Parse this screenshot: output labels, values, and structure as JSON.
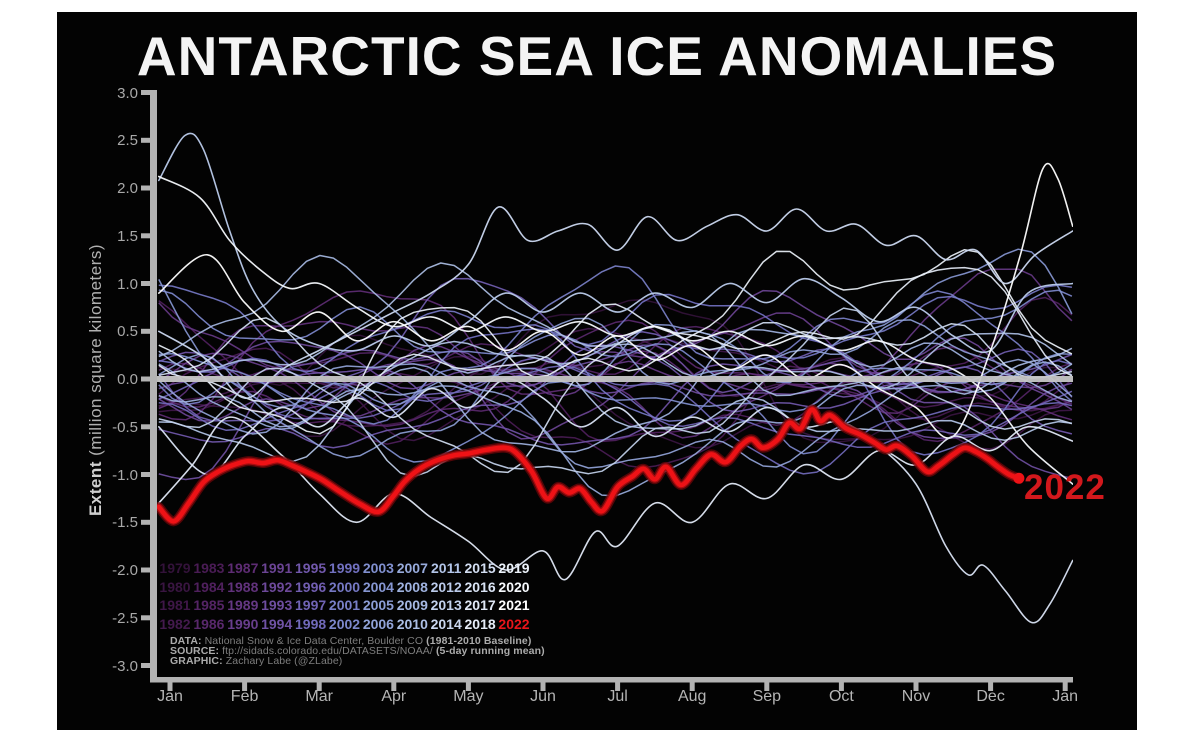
{
  "title": "ANTARCTIC SEA ICE ANOMALIES",
  "annotation_2022": "2022",
  "y_axis": {
    "label_bold": "Extent",
    "label_rest": " (million square kilometers)",
    "ticks": [
      "3.0",
      "2.5",
      "2.0",
      "1.5",
      "1.0",
      "0.5",
      "0.0",
      "-0.5",
      "-1.0",
      "-1.5",
      "-2.0",
      "-2.5",
      "-3.0"
    ]
  },
  "x_axis": {
    "ticks": [
      "Jan",
      "Feb",
      "Mar",
      "Apr",
      "May",
      "Jun",
      "Jul",
      "Aug",
      "Sep",
      "Oct",
      "Nov",
      "Dec",
      "Jan"
    ]
  },
  "legend": {
    "rows": [
      [
        "1979",
        "1983",
        "1987",
        "1991",
        "1995",
        "1999",
        "2003",
        "2007",
        "2011",
        "2015",
        "2019"
      ],
      [
        "1980",
        "1984",
        "1988",
        "1992",
        "1996",
        "2000",
        "2004",
        "2008",
        "2012",
        "2016",
        "2020"
      ],
      [
        "1981",
        "1985",
        "1989",
        "1993",
        "1997",
        "2001",
        "2005",
        "2009",
        "2013",
        "2017",
        "2021"
      ],
      [
        "1982",
        "1986",
        "1990",
        "1994",
        "1998",
        "2002",
        "2006",
        "2010",
        "2014",
        "2018",
        "2022"
      ]
    ]
  },
  "credits": [
    {
      "parts": [
        {
          "t": "DATA:",
          "b": true
        },
        {
          "t": " National Snow & Ice Data Center, Boulder CO ",
          "b": false
        },
        {
          "t": "(1981-2010 Baseline)",
          "b": true
        }
      ]
    },
    {
      "parts": [
        {
          "t": "SOURCE:",
          "b": true
        },
        {
          "t": " ftp://sidads.colorado.edu/DATASETS/NOAA/ ",
          "b": false
        },
        {
          "t": "(5-day running mean)",
          "b": true
        }
      ]
    },
    {
      "parts": [
        {
          "t": "GRAPHIC:",
          "b": true
        },
        {
          "t": " Zachary Labe (@ZLabe)",
          "b": false
        }
      ]
    }
  ],
  "colors": {
    "page_background": "#ffffff",
    "canvas_background": "#030303",
    "title": "#f4f4f4",
    "axis": "#b3b3b3",
    "tick_label": "#a9a9a9",
    "zero_line": "#c6c6c6",
    "highlight_red": "#ee1216",
    "highlight_red_glow": "#6e0709",
    "annotation_red": "#d2181c"
  },
  "chart_data": {
    "type": "line",
    "title": "ANTARCTIC SEA ICE ANOMALIES",
    "ylabel": "Extent (million square kilometers)",
    "ylim": [
      -3.0,
      3.0
    ],
    "y_tick_step": 0.5,
    "x_categories": [
      "Jan",
      "Feb",
      "Mar",
      "Apr",
      "May",
      "Jun",
      "Jul",
      "Aug",
      "Sep",
      "Oct",
      "Nov",
      "Dec",
      "Jan"
    ],
    "grid": false,
    "legend_position": "bottom-left inside plot",
    "baseline_note": "1981-2010 Baseline, 5-day running mean",
    "zero_line": 0.0,
    "years_shown": {
      "from": 1979,
      "to": 2022
    },
    "highlight_series": {
      "name": "2022",
      "color": "#ee1216",
      "end_dot": true,
      "points": [
        [
          -0.15,
          -1.34
        ],
        [
          0.05,
          -1.49
        ],
        [
          0.25,
          -1.3
        ],
        [
          0.45,
          -1.08
        ],
        [
          0.65,
          -0.97
        ],
        [
          0.85,
          -0.9
        ],
        [
          1.05,
          -0.86
        ],
        [
          1.25,
          -0.88
        ],
        [
          1.45,
          -0.85
        ],
        [
          1.65,
          -0.91
        ],
        [
          1.85,
          -0.98
        ],
        [
          2.05,
          -1.06
        ],
        [
          2.3,
          -1.19
        ],
        [
          2.55,
          -1.31
        ],
        [
          2.8,
          -1.39
        ],
        [
          3.0,
          -1.22
        ],
        [
          3.15,
          -1.07
        ],
        [
          3.35,
          -0.94
        ],
        [
          3.55,
          -0.86
        ],
        [
          3.8,
          -0.8
        ],
        [
          4.0,
          -0.78
        ],
        [
          4.25,
          -0.74
        ],
        [
          4.5,
          -0.72
        ],
        [
          4.65,
          -0.78
        ],
        [
          4.85,
          -0.97
        ],
        [
          5.05,
          -1.25
        ],
        [
          5.2,
          -1.13
        ],
        [
          5.35,
          -1.19
        ],
        [
          5.5,
          -1.15
        ],
        [
          5.65,
          -1.29
        ],
        [
          5.8,
          -1.38
        ],
        [
          6.0,
          -1.13
        ],
        [
          6.2,
          -1.02
        ],
        [
          6.35,
          -0.94
        ],
        [
          6.5,
          -1.05
        ],
        [
          6.65,
          -0.92
        ],
        [
          6.85,
          -1.11
        ],
        [
          7.05,
          -0.94
        ],
        [
          7.25,
          -0.79
        ],
        [
          7.45,
          -0.87
        ],
        [
          7.65,
          -0.7
        ],
        [
          7.8,
          -0.63
        ],
        [
          7.95,
          -0.72
        ],
        [
          8.15,
          -0.63
        ],
        [
          8.3,
          -0.46
        ],
        [
          8.45,
          -0.52
        ],
        [
          8.6,
          -0.32
        ],
        [
          8.72,
          -0.44
        ],
        [
          8.85,
          -0.38
        ],
        [
          9.05,
          -0.51
        ],
        [
          9.25,
          -0.58
        ],
        [
          9.45,
          -0.67
        ],
        [
          9.6,
          -0.74
        ],
        [
          9.75,
          -0.7
        ],
        [
          9.95,
          -0.81
        ],
        [
          10.15,
          -0.97
        ],
        [
          10.3,
          -0.91
        ],
        [
          10.5,
          -0.79
        ],
        [
          10.65,
          -0.72
        ],
        [
          10.8,
          -0.76
        ],
        [
          10.95,
          -0.83
        ],
        [
          11.1,
          -0.92
        ],
        [
          11.25,
          -1.0
        ],
        [
          11.38,
          -1.04
        ]
      ]
    },
    "background_years": {
      "from": 1979,
      "to": 2021,
      "note": "43 thin background lines, schematic reconstruction; color ramp dark purple (1979) to white (2021)",
      "color_stops": [
        [
          1979,
          "#33123a"
        ],
        [
          1983,
          "#4a1c55"
        ],
        [
          1987,
          "#5e2c74"
        ],
        [
          1991,
          "#6b4494"
        ],
        [
          1995,
          "#7158ac"
        ],
        [
          1999,
          "#7170c0"
        ],
        [
          2003,
          "#8190d0"
        ],
        [
          2007,
          "#98abdc"
        ],
        [
          2011,
          "#b3c5e8"
        ],
        [
          2015,
          "#d3def2"
        ],
        [
          2019,
          "#ecf2fa"
        ],
        [
          2021,
          "#ffffff"
        ]
      ],
      "year_2022_color": "#e8151a",
      "seed": 77
    },
    "feature_lines": [
      {
        "year": 2012,
        "points": [
          [
            -0.15,
            2.08
          ],
          [
            0.2,
            2.55
          ],
          [
            0.45,
            2.4
          ],
          [
            0.8,
            1.55
          ],
          [
            1.1,
            0.95
          ],
          [
            1.5,
            0.55
          ],
          [
            2,
            0.35
          ],
          [
            2.5,
            0.3
          ],
          [
            3,
            0.45
          ],
          [
            3.5,
            0.35
          ],
          [
            4,
            0.6
          ],
          [
            4.5,
            0.9
          ],
          [
            5,
            0.7
          ],
          [
            5.5,
            0.9
          ],
          [
            6,
            0.7
          ],
          [
            6.5,
            0.9
          ],
          [
            7,
            0.75
          ],
          [
            7.5,
            1.0
          ],
          [
            8,
            0.8
          ],
          [
            8.5,
            1.05
          ],
          [
            9,
            0.85
          ],
          [
            9.5,
            0.6
          ],
          [
            10,
            0.75
          ],
          [
            10.5,
            0.45
          ],
          [
            11,
            0.3
          ],
          [
            11.5,
            0.9
          ],
          [
            12.1,
            1.0
          ]
        ]
      },
      {
        "year": 2020,
        "points": [
          [
            -0.15,
            2.12
          ],
          [
            0.4,
            1.9
          ],
          [
            0.8,
            1.45
          ],
          [
            1.2,
            1.15
          ],
          [
            1.6,
            0.95
          ],
          [
            2,
            1.0
          ],
          [
            2.5,
            0.75
          ],
          [
            3,
            0.55
          ],
          [
            3.5,
            0.65
          ],
          [
            4,
            0.5
          ],
          [
            4.5,
            0.65
          ],
          [
            5,
            0.5
          ],
          [
            5.5,
            0.6
          ],
          [
            6,
            0.45
          ],
          [
            6.5,
            0.55
          ],
          [
            7,
            0.4
          ],
          [
            7.5,
            0.5
          ],
          [
            8,
            0.35
          ],
          [
            8.5,
            0.45
          ],
          [
            9,
            0.3
          ],
          [
            9.5,
            0.4
          ],
          [
            10,
            0.2
          ],
          [
            10.5,
            0.1
          ],
          [
            11,
            -0.2
          ],
          [
            11.5,
            -0.7
          ],
          [
            12.1,
            -1.1
          ]
        ]
      },
      {
        "year": 2014,
        "points": [
          [
            -0.15,
            0.5
          ],
          [
            0.5,
            0.2
          ],
          [
            1,
            -0.2
          ],
          [
            1.5,
            0.1
          ],
          [
            2,
            0.3
          ],
          [
            2.5,
            0.5
          ],
          [
            3,
            0.7
          ],
          [
            3.5,
            0.9
          ],
          [
            4,
            1.2
          ],
          [
            4.4,
            1.8
          ],
          [
            4.8,
            1.45
          ],
          [
            5.2,
            1.55
          ],
          [
            5.6,
            1.62
          ],
          [
            6,
            1.35
          ],
          [
            6.4,
            1.7
          ],
          [
            6.8,
            1.45
          ],
          [
            7.2,
            1.6
          ],
          [
            7.6,
            1.72
          ],
          [
            8,
            1.55
          ],
          [
            8.4,
            1.78
          ],
          [
            8.8,
            1.55
          ],
          [
            9.2,
            1.62
          ],
          [
            9.6,
            1.4
          ],
          [
            10,
            1.5
          ],
          [
            10.4,
            1.25
          ],
          [
            10.8,
            1.35
          ],
          [
            11.2,
            1.0
          ],
          [
            11.6,
            1.3
          ],
          [
            12.1,
            1.55
          ]
        ]
      },
      {
        "year": 2016,
        "points": [
          [
            -0.15,
            -0.5
          ],
          [
            0.5,
            -1.0
          ],
          [
            1,
            -0.6
          ],
          [
            1.5,
            -0.3
          ],
          [
            2,
            -0.5
          ],
          [
            2.5,
            -0.2
          ],
          [
            3,
            -0.4
          ],
          [
            3.5,
            -0.1
          ],
          [
            4,
            -0.3
          ],
          [
            4.5,
            0.0
          ],
          [
            5,
            -0.2
          ],
          [
            5.5,
            -0.5
          ],
          [
            6,
            -0.3
          ],
          [
            6.5,
            -0.6
          ],
          [
            7,
            -0.4
          ],
          [
            7.5,
            -0.55
          ],
          [
            8,
            -0.3
          ],
          [
            8.5,
            -0.5
          ],
          [
            9,
            -0.45
          ],
          [
            9.5,
            -0.7
          ],
          [
            10,
            -1.1
          ],
          [
            10.4,
            -1.75
          ],
          [
            10.7,
            -2.05
          ],
          [
            10.9,
            -1.95
          ],
          [
            11.2,
            -2.22
          ],
          [
            11.55,
            -2.55
          ],
          [
            11.8,
            -2.35
          ],
          [
            12.1,
            -1.9
          ]
        ]
      },
      {
        "year": 2021,
        "points": [
          [
            -0.15,
            0.9
          ],
          [
            0.5,
            1.3
          ],
          [
            1,
            0.8
          ],
          [
            1.5,
            0.5
          ],
          [
            2,
            0.7
          ],
          [
            2.5,
            0.4
          ],
          [
            3,
            0.6
          ],
          [
            3.5,
            0.4
          ],
          [
            4,
            0.55
          ],
          [
            4.5,
            0.3
          ],
          [
            5,
            0.5
          ],
          [
            5.5,
            0.25
          ],
          [
            6,
            0.45
          ],
          [
            6.5,
            0.2
          ],
          [
            7,
            0.35
          ],
          [
            7.5,
            0.1
          ],
          [
            8,
            0.25
          ],
          [
            8.5,
            0.0
          ],
          [
            9,
            0.15
          ],
          [
            9.5,
            -0.1
          ],
          [
            10,
            -0.3
          ],
          [
            10.5,
            -0.6
          ],
          [
            11,
            0.3
          ],
          [
            11.4,
            1.3
          ],
          [
            11.7,
            2.2
          ],
          [
            11.9,
            2.1
          ],
          [
            12.1,
            1.6
          ]
        ]
      },
      {
        "year": 2017,
        "points": [
          [
            -0.15,
            -1.3
          ],
          [
            0.3,
            -0.9
          ],
          [
            0.8,
            -0.4
          ],
          [
            1.5,
            -0.8
          ],
          [
            2,
            -1.2
          ],
          [
            2.5,
            -1.5
          ],
          [
            3,
            -1.2
          ],
          [
            3.5,
            -1.45
          ],
          [
            4,
            -1.7
          ],
          [
            4.5,
            -2.0
          ],
          [
            5,
            -1.8
          ],
          [
            5.3,
            -2.1
          ],
          [
            5.7,
            -1.6
          ],
          [
            6,
            -1.75
          ],
          [
            6.5,
            -1.3
          ],
          [
            7,
            -1.5
          ],
          [
            7.5,
            -1.1
          ],
          [
            8,
            -1.25
          ],
          [
            8.5,
            -0.9
          ],
          [
            9,
            -1.05
          ],
          [
            9.5,
            -0.75
          ],
          [
            10,
            -0.9
          ],
          [
            10.5,
            -0.6
          ],
          [
            11,
            -0.75
          ],
          [
            11.5,
            -0.5
          ],
          [
            12.1,
            -0.65
          ]
        ]
      }
    ]
  }
}
